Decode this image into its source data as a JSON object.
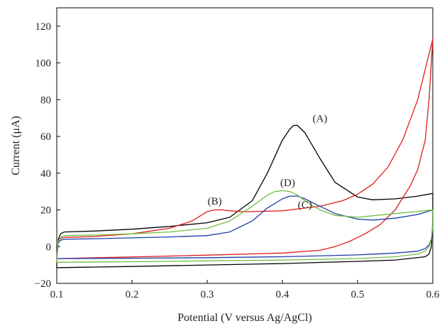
{
  "chart_data": {
    "type": "line",
    "title": "",
    "xlabel": "Potential (V versus Ag/AgCl)",
    "ylabel": "Current (μA)",
    "xlim": [
      0.1,
      0.6
    ],
    "ylim": [
      -20,
      130
    ],
    "xticks": [
      0.1,
      0.2,
      0.3,
      0.4,
      0.5,
      0.6
    ],
    "yticks": [
      -20,
      0,
      20,
      40,
      60,
      80,
      100,
      120
    ],
    "xtick_labels": [
      "0.1",
      "0.2",
      "0.3",
      "0.4",
      "0.5",
      "0.6"
    ],
    "ytick_labels": [
      "−20",
      "0",
      "20",
      "40",
      "60",
      "80",
      "100",
      "120"
    ],
    "grid": false,
    "series": [
      {
        "color": "#000000",
        "x": [
          0.1,
          0.102,
          0.105,
          0.11,
          0.15,
          0.2,
          0.25,
          0.3,
          0.33,
          0.36,
          0.38,
          0.4,
          0.41,
          0.415,
          0.42,
          0.43,
          0.45,
          0.47,
          0.5,
          0.52,
          0.55,
          0.58,
          0.6,
          0.6,
          0.598,
          0.595,
          0.59,
          0.55,
          0.5,
          0.45,
          0.4,
          0.3,
          0.2,
          0.15,
          0.105,
          0.1,
          0.1
        ],
        "y": [
          -8,
          4,
          7,
          8,
          8.5,
          9.5,
          11,
          13,
          16,
          25,
          40,
          58,
          64,
          66,
          66,
          62,
          48,
          35,
          27,
          25.5,
          26,
          27.5,
          29,
          14,
          0,
          -4,
          -5.5,
          -7.3,
          -8,
          -8.6,
          -9.2,
          -10,
          -10.8,
          -11.1,
          -11.4,
          -11.5,
          -8
        ]
      },
      {
        "color": "#e01b1b",
        "x": [
          0.1,
          0.102,
          0.105,
          0.11,
          0.15,
          0.2,
          0.25,
          0.28,
          0.3,
          0.31,
          0.32,
          0.33,
          0.35,
          0.4,
          0.45,
          0.48,
          0.5,
          0.52,
          0.54,
          0.56,
          0.58,
          0.6,
          0.6,
          0.595,
          0.59,
          0.58,
          0.57,
          0.55,
          0.53,
          0.51,
          0.49,
          0.47,
          0.45,
          0.4,
          0.3,
          0.2,
          0.1,
          0.1
        ],
        "y": [
          -6,
          3,
          4.5,
          5,
          5.5,
          7,
          10,
          14,
          19,
          20,
          20,
          19.5,
          19,
          19.5,
          22,
          25,
          28.5,
          34,
          43,
          58,
          80,
          113,
          113,
          80,
          58,
          42,
          33,
          20,
          12,
          7,
          3,
          0,
          -2,
          -3.5,
          -4.6,
          -5.6,
          -6.5,
          -6
        ]
      },
      {
        "color": "#1c3ea6",
        "x": [
          0.1,
          0.102,
          0.105,
          0.11,
          0.15,
          0.2,
          0.25,
          0.3,
          0.33,
          0.36,
          0.38,
          0.4,
          0.41,
          0.42,
          0.43,
          0.45,
          0.47,
          0.5,
          0.52,
          0.55,
          0.58,
          0.6,
          0.6,
          0.598,
          0.595,
          0.59,
          0.58,
          0.55,
          0.5,
          0.4,
          0.3,
          0.2,
          0.1,
          0.1
        ],
        "y": [
          -6,
          2,
          3.5,
          4,
          4.3,
          4.8,
          5.3,
          6,
          8,
          14,
          21,
          26,
          27.5,
          27.5,
          26,
          22,
          18,
          15,
          14.5,
          15.5,
          17.5,
          20,
          10,
          4,
          1,
          -1,
          -2.5,
          -3.5,
          -4.5,
          -5.5,
          -6,
          -6.3,
          -6.5,
          -6
        ]
      },
      {
        "color": "#6fbf3f",
        "x": [
          0.1,
          0.102,
          0.105,
          0.11,
          0.15,
          0.2,
          0.25,
          0.3,
          0.33,
          0.36,
          0.38,
          0.39,
          0.4,
          0.41,
          0.42,
          0.43,
          0.45,
          0.47,
          0.5,
          0.55,
          0.6,
          0.6,
          0.598,
          0.595,
          0.59,
          0.58,
          0.55,
          0.5,
          0.4,
          0.3,
          0.2,
          0.1,
          0.1
        ],
        "y": [
          -8,
          3,
          5,
          6,
          6.3,
          7,
          8,
          10,
          14,
          22,
          28,
          30,
          30.5,
          30,
          28,
          25,
          20,
          17,
          16,
          18,
          20,
          12,
          4,
          0,
          -2.5,
          -4,
          -5.5,
          -6.5,
          -7.3,
          -7.8,
          -8.2,
          -8.5,
          -8
        ]
      }
    ],
    "annotations": [
      {
        "text": "(A)",
        "x": 0.45,
        "y": 68
      },
      {
        "text": "(B)",
        "x": 0.31,
        "y": 23
      },
      {
        "text": "(C)",
        "x": 0.43,
        "y": 21
      },
      {
        "text": "(D)",
        "x": 0.407,
        "y": 33
      }
    ]
  }
}
